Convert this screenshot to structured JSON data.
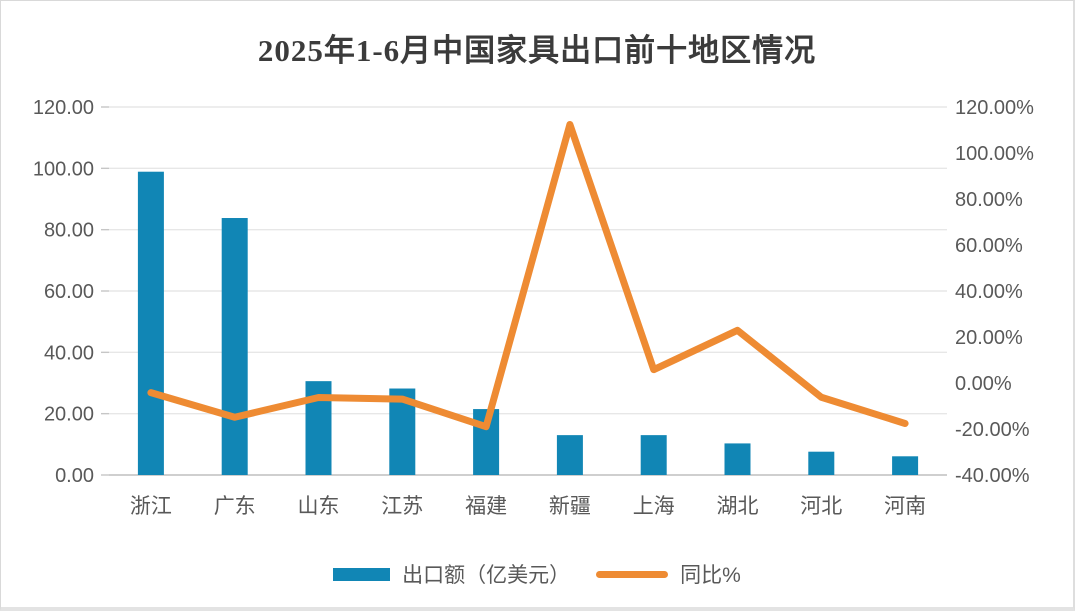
{
  "chart_data": {
    "type": "combo-bar-line",
    "title": "2025年1-6月中国家具出口前十地区情况",
    "categories": [
      "浙江",
      "广东",
      "山东",
      "江苏",
      "福建",
      "新疆",
      "上海",
      "湖北",
      "河北",
      "河南"
    ],
    "series": [
      {
        "name": "出口额（亿美元）",
        "type": "bar",
        "axis": "left",
        "values": [
          98.9,
          83.8,
          30.6,
          28.2,
          21.5,
          13.0,
          13.0,
          10.3,
          7.6,
          6.1
        ]
      },
      {
        "name": "同比%",
        "type": "line",
        "axis": "right",
        "values": [
          -4.2,
          -14.9,
          -6.3,
          -7.0,
          -19.0,
          112.4,
          5.8,
          22.9,
          -6.2,
          -17.6
        ]
      }
    ],
    "left_axis": {
      "min": 0,
      "max": 120,
      "step": 20,
      "tick_labels": [
        "120.00",
        "100.00",
        "80.00",
        "60.00",
        "40.00",
        "20.00",
        "0.00"
      ]
    },
    "right_axis": {
      "min": -40,
      "max": 120,
      "step": 20,
      "tick_labels": [
        "120.00%",
        "100.00%",
        "80.00%",
        "60.00%",
        "40.00%",
        "20.00%",
        "0.00%",
        "-20.00%",
        "-40.00%"
      ]
    },
    "grid": true,
    "legend_position": "bottom",
    "colors": {
      "bar": "#1186B5",
      "line": "#EE8B33",
      "grid": "#E7E7E7",
      "baseline": "#BFBFBF",
      "tick": "#C6C6C6",
      "axis_text": "#595959",
      "title_text": "#3B3B3B",
      "border": "#D9D9D9"
    }
  }
}
